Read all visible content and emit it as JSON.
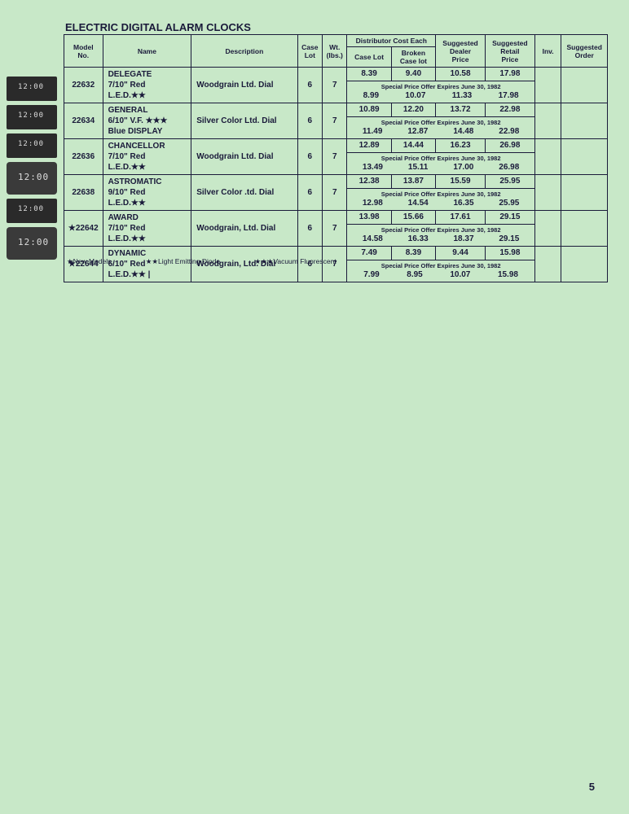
{
  "title": "ELECTRIC DIGITAL ALARM CLOCKS",
  "headers": {
    "model": "Model\nNo.",
    "name": "Name",
    "description": "Description",
    "caseLot": "Case\nLot",
    "wt": "Wt.\n(lbs.)",
    "distCost": "Distributor Cost Each",
    "caseLotPrice": "Case Lot",
    "brokenCase": "Broken\nCase lot",
    "dealerPrice": "Suggested\nDealer\nPrice",
    "retailPrice": "Suggested\nRetail\nPrice",
    "inv": "Inv.",
    "order": "Suggested\nOrder"
  },
  "specialOffer": "Special Price Offer Expires June 30, 1982",
  "rows": [
    {
      "model": "22632",
      "name": "DELEGATE\n7/10\" Red\nL.E.D.★★",
      "desc": "Woodgrain Ltd. Dial",
      "caseLot": "6",
      "wt": "7",
      "p1": [
        "8.39",
        "9.40",
        "10.58",
        "17.98"
      ],
      "p2": [
        "8.99",
        "10.07",
        "11.33",
        "17.98"
      ]
    },
    {
      "model": "22634",
      "name": "GENERAL\n6/10\" V.F. ★★★\nBlue DISPLAY",
      "desc": "Silver Color Ltd. Dial",
      "caseLot": "6",
      "wt": "7",
      "p1": [
        "10.89",
        "12.20",
        "13.72",
        "22.98"
      ],
      "p2": [
        "11.49",
        "12.87",
        "14.48",
        "22.98"
      ]
    },
    {
      "model": "22636",
      "name": "CHANCELLOR\n7/10\" Red\nL.E.D.★★",
      "desc": "Woodgrain Ltd. Dial",
      "caseLot": "6",
      "wt": "7",
      "p1": [
        "12.89",
        "14.44",
        "16.23",
        "26.98"
      ],
      "p2": [
        "13.49",
        "15.11",
        "17.00",
        "26.98"
      ]
    },
    {
      "model": "22638",
      "name": "ASTROMATIC\n9/10\" Red\nL.E.D.★★",
      "desc": "Silver Color .td. Dial",
      "caseLot": "6",
      "wt": "7",
      "p1": [
        "12.38",
        "13.87",
        "15.59",
        "25.95"
      ],
      "p2": [
        "12.98",
        "14.54",
        "16.35",
        "25.95"
      ]
    },
    {
      "model": "★22642",
      "name": "AWARD\n7/10\" Red\nL.E.D.★★",
      "desc": "Woodgrain, Ltd. Dial",
      "caseLot": "6",
      "wt": "7",
      "p1": [
        "13.98",
        "15.66",
        "17.61",
        "29.15"
      ],
      "p2": [
        "14.58",
        "16.33",
        "18.37",
        "29.15"
      ]
    },
    {
      "model": "★22644",
      "name": "DYNAMIC\n6/10\" Red\nL.E.D.★★ |",
      "desc": "Woodgrain, Ltd. Dial",
      "caseLot": "6",
      "wt": "7",
      "p1": [
        "7.49",
        "8.39",
        "9.44",
        "15.98"
      ],
      "p2": [
        "7.99",
        "8.95",
        "10.07",
        "15.98"
      ]
    }
  ],
  "footnotes": {
    "a": "★New Models",
    "b": "★★Light Emitting Diode",
    "c": "★★★Vacuum Fluorescent"
  },
  "pageNum": "5",
  "colors": {
    "bg": "#c8e8c8",
    "ink": "#1a1a3a"
  }
}
